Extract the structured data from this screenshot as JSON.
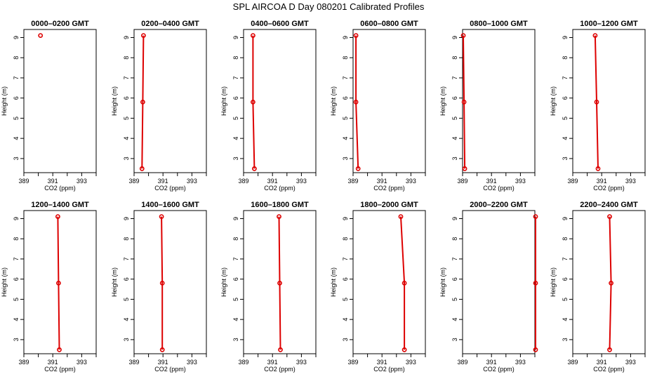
{
  "figure": {
    "title": "SPL AIRCOA D  Day 080201  Calibrated Profiles"
  },
  "chart_data": [
    {
      "type": "line",
      "title": "0000–0200 GMT",
      "xlabel": "CO2 (ppm)",
      "ylabel": "Height (m)",
      "xlim": [
        389,
        394
      ],
      "ylim": [
        2.3,
        9.4
      ],
      "x_ticks": [
        389,
        390,
        391,
        392,
        393,
        394
      ],
      "x_tick_labels": [
        "389",
        "",
        "391",
        "",
        "393",
        ""
      ],
      "y_ticks": [
        3,
        4,
        5,
        6,
        7,
        8,
        9
      ],
      "series": [
        {
          "x": [
            390.15
          ],
          "y": [
            9.1
          ]
        }
      ]
    },
    {
      "type": "line",
      "title": "0200–0400 GMT",
      "xlabel": "CO2 (ppm)",
      "ylabel": "Height (m)",
      "xlim": [
        389,
        394
      ],
      "ylim": [
        2.3,
        9.4
      ],
      "x_ticks": [
        389,
        390,
        391,
        392,
        393,
        394
      ],
      "x_tick_labels": [
        "389",
        "",
        "391",
        "",
        "393",
        ""
      ],
      "y_ticks": [
        3,
        4,
        5,
        6,
        7,
        8,
        9
      ],
      "series": [
        {
          "x": [
            389.55,
            389.6,
            389.65
          ],
          "y": [
            2.5,
            5.8,
            9.1
          ]
        }
      ]
    },
    {
      "type": "line",
      "title": "0400–0600 GMT",
      "xlabel": "CO2 (ppm)",
      "ylabel": "Height (m)",
      "xlim": [
        389,
        394
      ],
      "ylim": [
        2.3,
        9.4
      ],
      "x_ticks": [
        389,
        390,
        391,
        392,
        393,
        394
      ],
      "x_tick_labels": [
        "389",
        "",
        "391",
        "",
        "393",
        ""
      ],
      "y_ticks": [
        3,
        4,
        5,
        6,
        7,
        8,
        9
      ],
      "series": [
        {
          "x": [
            389.75,
            389.65,
            389.65
          ],
          "y": [
            2.5,
            5.8,
            9.1
          ]
        }
      ]
    },
    {
      "type": "line",
      "title": "0600–0800 GMT",
      "xlabel": "CO2 (ppm)",
      "ylabel": "Height (m)",
      "xlim": [
        389,
        394
      ],
      "ylim": [
        2.3,
        9.4
      ],
      "x_ticks": [
        389,
        390,
        391,
        392,
        393,
        394
      ],
      "x_tick_labels": [
        "389",
        "",
        "391",
        "",
        "393",
        ""
      ],
      "y_ticks": [
        3,
        4,
        5,
        6,
        7,
        8,
        9
      ],
      "series": [
        {
          "x": [
            389.35,
            389.2,
            389.2
          ],
          "y": [
            2.5,
            5.8,
            9.1
          ]
        }
      ]
    },
    {
      "type": "line",
      "title": "0800–1000 GMT",
      "xlabel": "CO2 (ppm)",
      "ylabel": "Height (m)",
      "xlim": [
        389,
        394
      ],
      "ylim": [
        2.3,
        9.4
      ],
      "x_ticks": [
        389,
        390,
        391,
        392,
        393,
        394
      ],
      "x_tick_labels": [
        "389",
        "",
        "391",
        "",
        "393",
        ""
      ],
      "y_ticks": [
        3,
        4,
        5,
        6,
        7,
        8,
        9
      ],
      "series": [
        {
          "x": [
            389.15,
            389.1,
            389.05
          ],
          "y": [
            2.5,
            5.8,
            9.1
          ]
        }
      ]
    },
    {
      "type": "line",
      "title": "1000–1200 GMT",
      "xlabel": "CO2 (ppm)",
      "ylabel": "Height (m)",
      "xlim": [
        389,
        394
      ],
      "ylim": [
        2.3,
        9.4
      ],
      "x_ticks": [
        389,
        390,
        391,
        392,
        393,
        394
      ],
      "x_tick_labels": [
        "389",
        "",
        "391",
        "",
        "393",
        ""
      ],
      "y_ticks": [
        3,
        4,
        5,
        6,
        7,
        8,
        9
      ],
      "series": [
        {
          "x": [
            390.75,
            390.65,
            390.55
          ],
          "y": [
            2.5,
            5.8,
            9.1
          ]
        }
      ]
    },
    {
      "type": "line",
      "title": "1200–1400 GMT",
      "xlabel": "CO2 (ppm)",
      "ylabel": "Height (m)",
      "xlim": [
        389,
        394
      ],
      "ylim": [
        2.3,
        9.4
      ],
      "x_ticks": [
        389,
        390,
        391,
        392,
        393,
        394
      ],
      "x_tick_labels": [
        "389",
        "",
        "391",
        "",
        "393",
        ""
      ],
      "y_ticks": [
        3,
        4,
        5,
        6,
        7,
        8,
        9
      ],
      "series": [
        {
          "x": [
            391.45,
            391.4,
            391.35
          ],
          "y": [
            2.5,
            5.8,
            9.1
          ]
        }
      ]
    },
    {
      "type": "line",
      "title": "1400–1600 GMT",
      "xlabel": "CO2 (ppm)",
      "ylabel": "Height (m)",
      "xlim": [
        389,
        394
      ],
      "ylim": [
        2.3,
        9.4
      ],
      "x_ticks": [
        389,
        390,
        391,
        392,
        393,
        394
      ],
      "x_tick_labels": [
        "389",
        "",
        "391",
        "",
        "393",
        ""
      ],
      "y_ticks": [
        3,
        4,
        5,
        6,
        7,
        8,
        9
      ],
      "series": [
        {
          "x": [
            390.95,
            390.95,
            390.9
          ],
          "y": [
            2.5,
            5.8,
            9.1
          ]
        }
      ]
    },
    {
      "type": "line",
      "title": "1600–1800 GMT",
      "xlabel": "CO2 (ppm)",
      "ylabel": "Height (m)",
      "xlim": [
        389,
        394
      ],
      "ylim": [
        2.3,
        9.4
      ],
      "x_ticks": [
        389,
        390,
        391,
        392,
        393,
        394
      ],
      "x_tick_labels": [
        "389",
        "",
        "391",
        "",
        "393",
        ""
      ],
      "y_ticks": [
        3,
        4,
        5,
        6,
        7,
        8,
        9
      ],
      "series": [
        {
          "x": [
            391.55,
            391.5,
            391.45
          ],
          "y": [
            2.5,
            5.8,
            9.1
          ]
        }
      ]
    },
    {
      "type": "line",
      "title": "1800–2000 GMT",
      "xlabel": "CO2 (ppm)",
      "ylabel": "Height (m)",
      "xlim": [
        389,
        394
      ],
      "ylim": [
        2.3,
        9.4
      ],
      "x_ticks": [
        389,
        390,
        391,
        392,
        393,
        394
      ],
      "x_tick_labels": [
        "389",
        "",
        "391",
        "",
        "393",
        ""
      ],
      "y_ticks": [
        3,
        4,
        5,
        6,
        7,
        8,
        9
      ],
      "series": [
        {
          "x": [
            392.55,
            392.55,
            392.3
          ],
          "y": [
            2.5,
            5.8,
            9.1
          ]
        }
      ]
    },
    {
      "type": "line",
      "title": "2000–2200 GMT",
      "xlabel": "CO2 (ppm)",
      "ylabel": "Height (m)",
      "xlim": [
        389,
        394
      ],
      "ylim": [
        2.3,
        9.4
      ],
      "x_ticks": [
        389,
        390,
        391,
        392,
        393,
        394
      ],
      "x_tick_labels": [
        "389",
        "",
        "391",
        "",
        "393",
        ""
      ],
      "y_ticks": [
        3,
        4,
        5,
        6,
        7,
        8,
        9
      ],
      "series": [
        {
          "x": [
            394.05,
            394.05,
            394.05
          ],
          "y": [
            2.5,
            5.8,
            9.1
          ]
        }
      ]
    },
    {
      "type": "line",
      "title": "2200–2400 GMT",
      "xlabel": "CO2 (ppm)",
      "ylabel": "Height (m)",
      "xlim": [
        389,
        394
      ],
      "ylim": [
        2.3,
        9.4
      ],
      "x_ticks": [
        389,
        390,
        391,
        392,
        393,
        394
      ],
      "x_tick_labels": [
        "389",
        "",
        "391",
        "",
        "393",
        ""
      ],
      "y_ticks": [
        3,
        4,
        5,
        6,
        7,
        8,
        9
      ],
      "series": [
        {
          "x": [
            391.55,
            391.65,
            391.55
          ],
          "y": [
            2.5,
            5.8,
            9.1
          ]
        }
      ]
    }
  ]
}
